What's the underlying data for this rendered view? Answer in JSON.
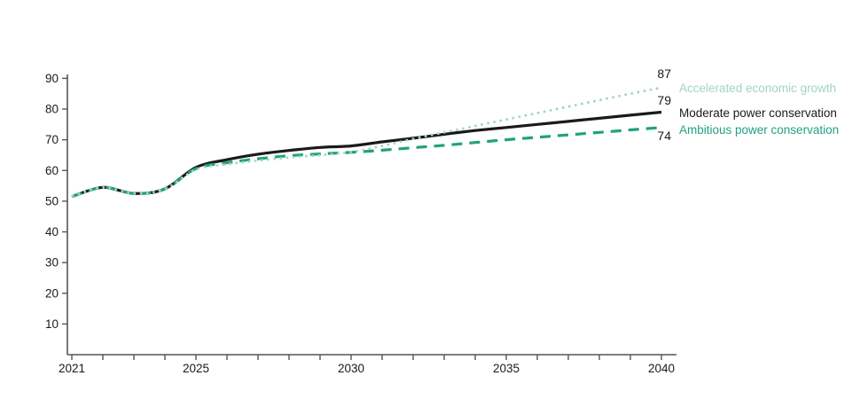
{
  "chart_data": {
    "type": "line",
    "x": [
      2021,
      2022,
      2023,
      2024,
      2025,
      2026,
      2027,
      2028,
      2029,
      2030,
      2031,
      2032,
      2033,
      2034,
      2035,
      2036,
      2037,
      2038,
      2039,
      2040
    ],
    "series": [
      {
        "name": "Accelerated economic growth",
        "style": "dotted",
        "color": "#a0d5bf",
        "end_label": "87",
        "values": [
          51.5,
          54.5,
          52.5,
          54,
          60.3,
          62,
          63.2,
          64.2,
          65,
          66,
          68,
          70.3,
          72.4,
          74.5,
          76.6,
          78.7,
          80.8,
          82.9,
          85,
          87
        ]
      },
      {
        "name": "Moderate power conservation",
        "style": "solid",
        "color": "#1a1a1a",
        "end_label": "79",
        "values": [
          51.5,
          54.5,
          52.5,
          54,
          61,
          63.5,
          65.3,
          66.5,
          67.5,
          68,
          69.3,
          70.5,
          71.8,
          73,
          74,
          75,
          76,
          77,
          78,
          79
        ]
      },
      {
        "name": "Ambitious power conservation",
        "style": "dashed",
        "color": "#21a180",
        "end_label": "74",
        "values": [
          51.5,
          54.5,
          52.5,
          54,
          60.6,
          62.5,
          63.8,
          64.8,
          65.4,
          65.9,
          66.6,
          67.4,
          68.2,
          69.1,
          70,
          70.8,
          71.6,
          72.4,
          73.2,
          74
        ]
      }
    ],
    "title": "",
    "xlabel": "",
    "ylabel": "",
    "ylim": [
      0,
      90
    ],
    "yticks": [
      10,
      20,
      30,
      40,
      50,
      60,
      70,
      80,
      90
    ],
    "xticks_minor_years": [
      2021,
      2022,
      2023,
      2024,
      2025,
      2026,
      2027,
      2028,
      2029,
      2030,
      2031,
      2032,
      2033,
      2034,
      2035,
      2036,
      2037,
      2038,
      2039,
      2040
    ],
    "xticks_labeled": [
      "2021",
      "2025",
      "2030",
      "2035",
      "2040"
    ],
    "grid": false,
    "legend_position": "right of line ends",
    "axis_color": "#555555",
    "tick_label_color": "#1a1a1a"
  }
}
